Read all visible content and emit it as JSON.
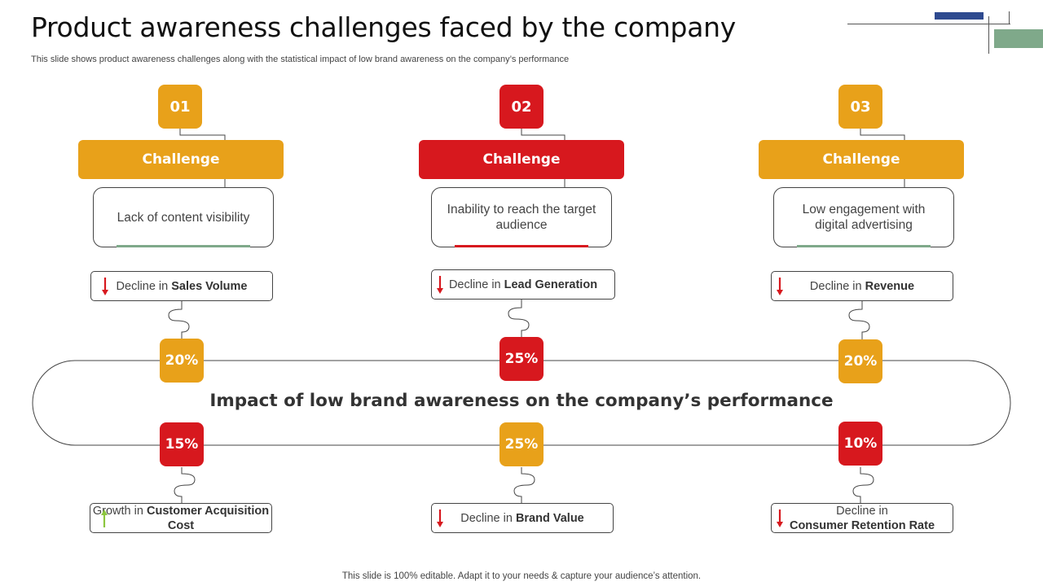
{
  "title": "Product awareness challenges faced by the company",
  "subtitle": "This slide shows product awareness challenges along with the statistical impact of low brand awareness on the company’s performance",
  "footer": "This slide is 100% editable. Adapt it to your needs & capture your audience’s attention.",
  "colors": {
    "orange": "#E8A11A",
    "red": "#D7181E",
    "green": "#7FA98A",
    "navy": "#2E4A8F",
    "arrow_up": "#8CC63E"
  },
  "challenges": [
    {
      "number": "01",
      "label": "Challenge",
      "description": "Lack of content visibility"
    },
    {
      "number": "02",
      "label": "Challenge",
      "description": "Inability to reach the target audience"
    },
    {
      "number": "03",
      "label": "Challenge",
      "description": "Low engagement with digital advertising"
    }
  ],
  "top_metrics": [
    {
      "prefix": "Decline in",
      "metric": "Sales Volume",
      "direction": "down",
      "value": "20%"
    },
    {
      "prefix": "Decline in",
      "metric": "Lead Generation",
      "direction": "down",
      "value": "25%"
    },
    {
      "prefix": "Decline in",
      "metric": "Revenue",
      "direction": "down",
      "value": "20%"
    }
  ],
  "banner": "Impact of low brand awareness on the company’s performance",
  "bottom_metrics": [
    {
      "prefix": "Growth in",
      "metric": "Customer Acquisition Cost",
      "direction": "up",
      "value": "15%"
    },
    {
      "prefix": "Decline in",
      "metric": "Brand Value",
      "direction": "down",
      "value": "25%"
    },
    {
      "prefix": "Decline in",
      "metric": "Consumer Retention Rate",
      "direction": "down",
      "value": "10%"
    }
  ]
}
